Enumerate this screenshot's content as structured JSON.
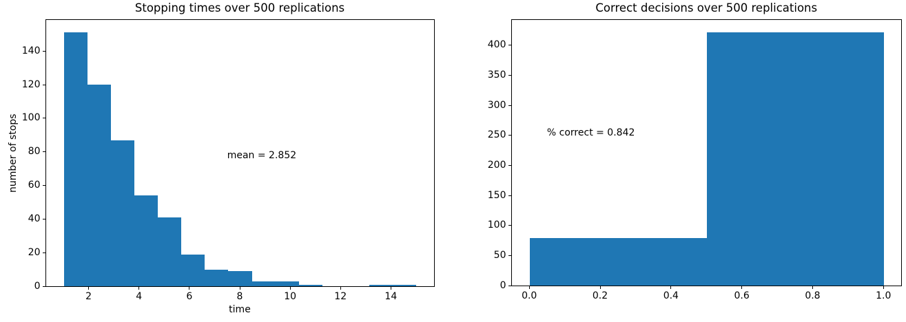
{
  "figure": {
    "background": "#ffffff",
    "replications": 500
  },
  "chart_data": [
    {
      "type": "bar",
      "subtype": "histogram",
      "title": "Stopping times over 500 replications",
      "xlabel": "time",
      "ylabel": "number of stops",
      "bar_color": "#1f77b4",
      "bin_range": [
        1,
        15
      ],
      "bin_count": 15,
      "counts": [
        151,
        120,
        87,
        54,
        41,
        19,
        10,
        9,
        3,
        3,
        1,
        0,
        0,
        1,
        1
      ],
      "total_observations": 500,
      "mean": 2.852,
      "annotation": {
        "text": "mean = 2.852",
        "x": 7.5,
        "y": 76
      },
      "xlim": [
        0.3,
        15.7
      ],
      "ylim": [
        0,
        158.55
      ],
      "xticks": [
        2,
        4,
        6,
        8,
        10,
        12,
        14
      ],
      "xtick_labels": [
        "2",
        "4",
        "6",
        "8",
        "10",
        "12",
        "14"
      ],
      "yticks": [
        0,
        20,
        40,
        60,
        80,
        100,
        120,
        140
      ],
      "ytick_labels": [
        "0",
        "20",
        "40",
        "60",
        "80",
        "100",
        "120",
        "140"
      ],
      "grid": false,
      "legend": null
    },
    {
      "type": "bar",
      "subtype": "histogram",
      "title": "Correct decisions over 500 replications",
      "xlabel": "",
      "ylabel": "",
      "bar_color": "#1f77b4",
      "bin_range": [
        0,
        1
      ],
      "bin_count": 2,
      "counts": [
        79,
        421
      ],
      "total_observations": 500,
      "percent_correct": 0.842,
      "annotation": {
        "text": "% correct = 0.842",
        "x": 0.05,
        "y": 250
      },
      "xlim": [
        -0.05,
        1.05
      ],
      "ylim": [
        0,
        442.05
      ],
      "xticks": [
        0.0,
        0.2,
        0.4,
        0.6,
        0.8,
        1.0
      ],
      "xtick_labels": [
        "0.0",
        "0.2",
        "0.4",
        "0.6",
        "0.8",
        "1.0"
      ],
      "yticks": [
        0,
        50,
        100,
        150,
        200,
        250,
        300,
        350,
        400
      ],
      "ytick_labels": [
        "0",
        "50",
        "100",
        "150",
        "200",
        "250",
        "300",
        "350",
        "400"
      ],
      "grid": false,
      "legend": null
    }
  ]
}
